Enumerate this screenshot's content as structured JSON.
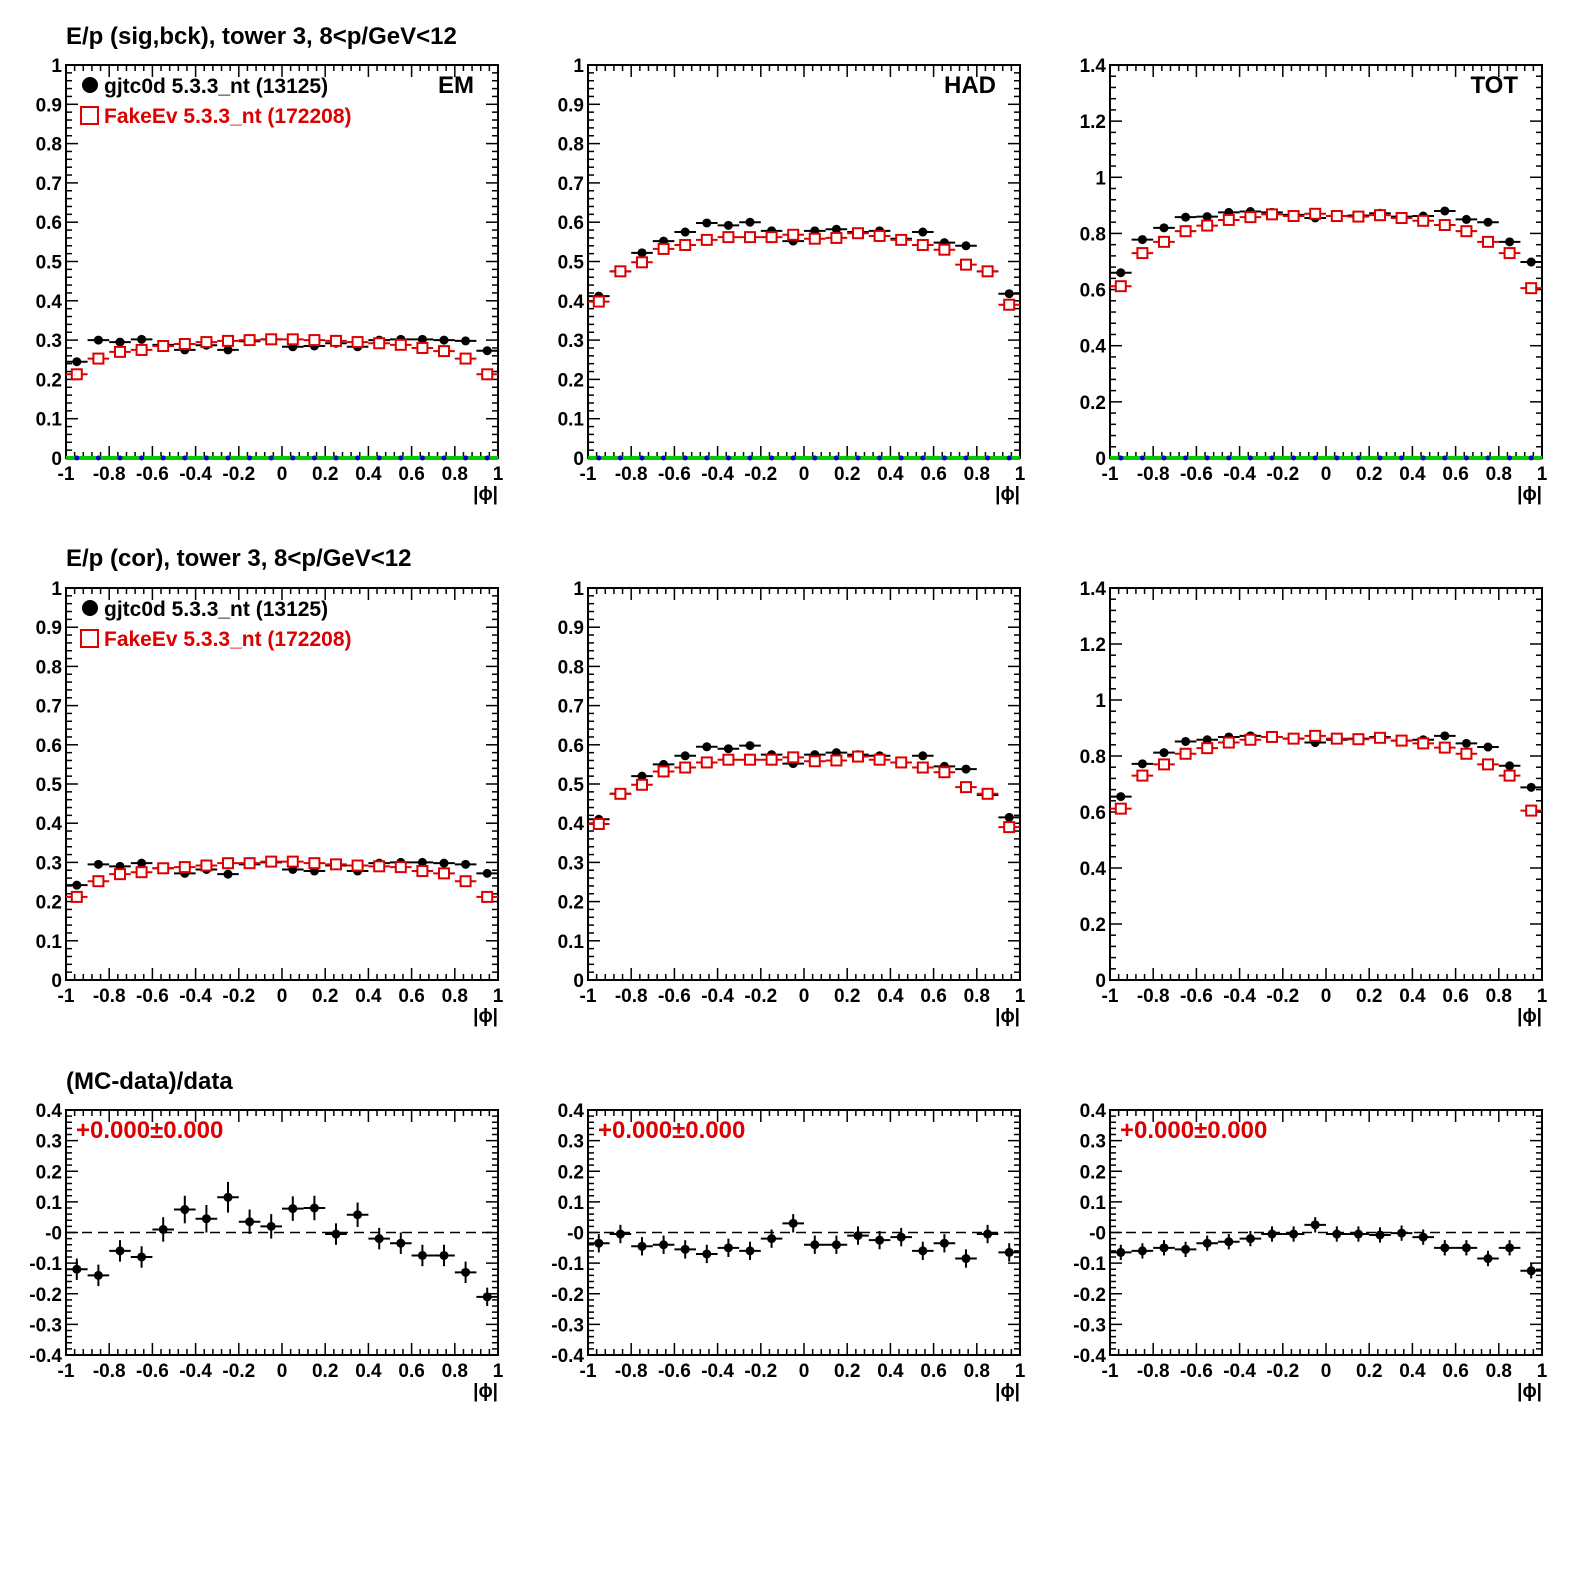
{
  "colors": {
    "data": "#000000",
    "mc": "#dd0000",
    "zero": "#00cc00",
    "zero_marker": "#0000cc",
    "fit_text": "#dd0000"
  },
  "row_titles": [
    "E/p (sig,bck), tower 3,  8<p/GeV<12",
    "E/p (cor), tower 3,  8<p/GeV<12",
    "(MC-data)/data"
  ],
  "legend": {
    "data_label": "gjtc0d 5.3.3_nt (13125)",
    "mc_label": "FakeEv 5.3.3_nt (172208)"
  },
  "panel_labels": [
    "EM",
    "HAD",
    "TOT"
  ],
  "fit_text": "+0.000±0.000",
  "xlabel": "|ϕ|",
  "chart_data": [
    {
      "type": "scatter",
      "row": 0,
      "col": 0,
      "label": "EM",
      "xlim": [
        -1,
        1
      ],
      "ylim": [
        0,
        1
      ],
      "yticks": [
        "0",
        "0.1",
        "0.2",
        "0.3",
        "0.4",
        "0.5",
        "0.6",
        "0.7",
        "0.8",
        "0.9",
        "1"
      ],
      "series": [
        {
          "name": "gjtc0d 5.3.3_nt (13125)",
          "style": "data",
          "values": [
            0.245,
            0.3,
            0.295,
            0.302,
            0.288,
            0.275,
            0.287,
            0.275,
            0.297,
            0.302,
            0.283,
            0.285,
            0.292,
            0.283,
            0.3,
            0.302,
            0.302,
            0.3,
            0.298,
            0.273
          ]
        },
        {
          "name": "FakeEv 5.3.3_nt (172208)",
          "style": "mc",
          "values": [
            0.213,
            0.253,
            0.27,
            0.275,
            0.285,
            0.29,
            0.295,
            0.298,
            0.3,
            0.302,
            0.302,
            0.3,
            0.298,
            0.295,
            0.292,
            0.288,
            0.28,
            0.272,
            0.253,
            0.213
          ]
        },
        {
          "style": "zero",
          "values": [
            0,
            0,
            0,
            0,
            0,
            0,
            0,
            0,
            0,
            0,
            0,
            0,
            0,
            0,
            0,
            0,
            0,
            0,
            0,
            0
          ]
        }
      ]
    },
    {
      "type": "scatter",
      "row": 0,
      "col": 1,
      "label": "HAD",
      "xlim": [
        -1,
        1
      ],
      "ylim": [
        0,
        1
      ],
      "yticks": [
        "0",
        "0.1",
        "0.2",
        "0.3",
        "0.4",
        "0.5",
        "0.6",
        "0.7",
        "0.8",
        "0.9",
        "1"
      ],
      "series": [
        {
          "style": "data",
          "values": [
            0.412,
            0.475,
            0.522,
            0.552,
            0.575,
            0.598,
            0.592,
            0.6,
            0.578,
            0.552,
            0.578,
            0.582,
            0.575,
            0.578,
            0.558,
            0.575,
            0.548,
            0.54,
            0.475,
            0.418
          ]
        },
        {
          "style": "mc",
          "values": [
            0.398,
            0.475,
            0.498,
            0.532,
            0.542,
            0.555,
            0.562,
            0.562,
            0.562,
            0.568,
            0.558,
            0.56,
            0.572,
            0.565,
            0.555,
            0.542,
            0.53,
            0.492,
            0.475,
            0.39
          ]
        },
        {
          "style": "zero",
          "values": [
            0,
            0,
            0,
            0,
            0,
            0,
            0,
            0,
            0,
            0,
            0,
            0,
            0,
            0,
            0,
            0,
            0,
            0,
            0,
            0
          ]
        }
      ]
    },
    {
      "type": "scatter",
      "row": 0,
      "col": 2,
      "label": "TOT",
      "xlim": [
        -1,
        1
      ],
      "ylim": [
        0,
        1.4
      ],
      "yticks": [
        "0",
        "0.2",
        "0.4",
        "0.6",
        "0.8",
        "1",
        "1.2",
        "1.4"
      ],
      "series": [
        {
          "style": "data",
          "values": [
            0.66,
            0.778,
            0.82,
            0.858,
            0.86,
            0.875,
            0.878,
            0.875,
            0.866,
            0.855,
            0.862,
            0.864,
            0.872,
            0.86,
            0.862,
            0.88,
            0.85,
            0.84,
            0.77,
            0.698
          ]
        },
        {
          "style": "mc",
          "values": [
            0.612,
            0.73,
            0.77,
            0.808,
            0.828,
            0.848,
            0.858,
            0.868,
            0.862,
            0.87,
            0.862,
            0.86,
            0.865,
            0.855,
            0.845,
            0.83,
            0.808,
            0.77,
            0.73,
            0.605
          ]
        },
        {
          "style": "zero",
          "values": [
            0,
            0,
            0,
            0,
            0,
            0,
            0,
            0,
            0,
            0,
            0,
            0,
            0,
            0,
            0,
            0,
            0,
            0,
            0,
            0
          ]
        }
      ]
    },
    {
      "type": "scatter",
      "row": 1,
      "col": 0,
      "xlim": [
        -1,
        1
      ],
      "ylim": [
        0,
        1
      ],
      "yticks": [
        "0",
        "0.1",
        "0.2",
        "0.3",
        "0.4",
        "0.5",
        "0.6",
        "0.7",
        "0.8",
        "0.9",
        "1"
      ],
      "series": [
        {
          "name": "gjtc0d 5.3.3_nt (13125)",
          "style": "data",
          "values": [
            0.242,
            0.295,
            0.29,
            0.298,
            0.285,
            0.272,
            0.282,
            0.27,
            0.295,
            0.3,
            0.282,
            0.278,
            0.292,
            0.278,
            0.298,
            0.3,
            0.3,
            0.298,
            0.295,
            0.272
          ]
        },
        {
          "name": "FakeEv 5.3.3_nt (172208)",
          "style": "mc",
          "values": [
            0.212,
            0.252,
            0.27,
            0.275,
            0.285,
            0.288,
            0.292,
            0.298,
            0.298,
            0.302,
            0.302,
            0.298,
            0.295,
            0.292,
            0.29,
            0.288,
            0.278,
            0.272,
            0.252,
            0.212
          ]
        }
      ]
    },
    {
      "type": "scatter",
      "row": 1,
      "col": 1,
      "xlim": [
        -1,
        1
      ],
      "ylim": [
        0,
        1
      ],
      "yticks": [
        "0",
        "0.1",
        "0.2",
        "0.3",
        "0.4",
        "0.5",
        "0.6",
        "0.7",
        "0.8",
        "0.9",
        "1"
      ],
      "series": [
        {
          "style": "data",
          "values": [
            0.41,
            0.475,
            0.52,
            0.55,
            0.572,
            0.595,
            0.59,
            0.598,
            0.575,
            0.552,
            0.575,
            0.58,
            0.575,
            0.572,
            0.555,
            0.572,
            0.545,
            0.538,
            0.472,
            0.415
          ]
        },
        {
          "style": "mc",
          "values": [
            0.398,
            0.475,
            0.498,
            0.532,
            0.542,
            0.555,
            0.562,
            0.562,
            0.562,
            0.568,
            0.558,
            0.56,
            0.57,
            0.562,
            0.555,
            0.542,
            0.53,
            0.492,
            0.475,
            0.39
          ]
        }
      ]
    },
    {
      "type": "scatter",
      "row": 1,
      "col": 2,
      "xlim": [
        -1,
        1
      ],
      "ylim": [
        0,
        1.4
      ],
      "yticks": [
        "0",
        "0.2",
        "0.4",
        "0.6",
        "0.8",
        "1",
        "1.2",
        "1.4"
      ],
      "series": [
        {
          "style": "data",
          "values": [
            0.655,
            0.772,
            0.812,
            0.852,
            0.858,
            0.868,
            0.872,
            0.868,
            0.862,
            0.848,
            0.858,
            0.862,
            0.868,
            0.855,
            0.858,
            0.872,
            0.845,
            0.832,
            0.765,
            0.688
          ]
        },
        {
          "style": "mc",
          "values": [
            0.612,
            0.73,
            0.77,
            0.808,
            0.828,
            0.848,
            0.858,
            0.868,
            0.862,
            0.872,
            0.862,
            0.86,
            0.865,
            0.855,
            0.845,
            0.83,
            0.808,
            0.77,
            0.73,
            0.605
          ]
        }
      ]
    },
    {
      "type": "scatter",
      "row": 2,
      "col": 0,
      "xlim": [
        -1,
        1
      ],
      "ylim": [
        -0.4,
        0.4
      ],
      "dashed_zero": true,
      "yticks": [
        "-0.4",
        "-0.3",
        "-0.2",
        "-0.1",
        "-0",
        "0.1",
        "0.2",
        "0.3",
        "0.4"
      ],
      "series": [
        {
          "style": "ratio",
          "values": [
            -0.12,
            -0.14,
            -0.06,
            -0.08,
            0.01,
            0.075,
            0.045,
            0.115,
            0.035,
            0.02,
            0.078,
            0.08,
            -0.005,
            0.058,
            -0.02,
            -0.035,
            -0.075,
            -0.075,
            -0.13,
            -0.21
          ],
          "errors": [
            0.035,
            0.035,
            0.035,
            0.035,
            0.04,
            0.045,
            0.045,
            0.05,
            0.04,
            0.04,
            0.04,
            0.04,
            0.035,
            0.04,
            0.035,
            0.035,
            0.035,
            0.035,
            0.035,
            0.03
          ]
        }
      ]
    },
    {
      "type": "scatter",
      "row": 2,
      "col": 1,
      "xlim": [
        -1,
        1
      ],
      "ylim": [
        -0.4,
        0.4
      ],
      "dashed_zero": true,
      "yticks": [
        "-0.4",
        "-0.3",
        "-0.2",
        "-0.1",
        "-0",
        "0.1",
        "0.2",
        "0.3",
        "0.4"
      ],
      "series": [
        {
          "style": "ratio",
          "values": [
            -0.035,
            -0.005,
            -0.045,
            -0.04,
            -0.055,
            -0.07,
            -0.05,
            -0.06,
            -0.02,
            0.03,
            -0.04,
            -0.04,
            -0.01,
            -0.025,
            -0.015,
            -0.06,
            -0.035,
            -0.085,
            -0.005,
            -0.065
          ],
          "errors": [
            0.03,
            0.03,
            0.03,
            0.03,
            0.03,
            0.03,
            0.03,
            0.03,
            0.03,
            0.03,
            0.03,
            0.03,
            0.03,
            0.03,
            0.03,
            0.03,
            0.03,
            0.03,
            0.03,
            0.03
          ]
        }
      ]
    },
    {
      "type": "scatter",
      "row": 2,
      "col": 2,
      "xlim": [
        -1,
        1
      ],
      "ylim": [
        -0.4,
        0.4
      ],
      "dashed_zero": true,
      "yticks": [
        "-0.4",
        "-0.3",
        "-0.2",
        "-0.1",
        "-0",
        "0.1",
        "0.2",
        "0.3",
        "0.4"
      ],
      "series": [
        {
          "style": "ratio",
          "values": [
            -0.065,
            -0.06,
            -0.05,
            -0.055,
            -0.035,
            -0.03,
            -0.02,
            -0.005,
            -0.005,
            0.025,
            -0.005,
            -0.005,
            -0.008,
            -0.002,
            -0.015,
            -0.05,
            -0.05,
            -0.085,
            -0.05,
            -0.125
          ],
          "errors": [
            0.025,
            0.025,
            0.025,
            0.025,
            0.025,
            0.025,
            0.025,
            0.025,
            0.025,
            0.025,
            0.025,
            0.025,
            0.025,
            0.025,
            0.025,
            0.025,
            0.025,
            0.025,
            0.025,
            0.025
          ]
        }
      ]
    }
  ]
}
